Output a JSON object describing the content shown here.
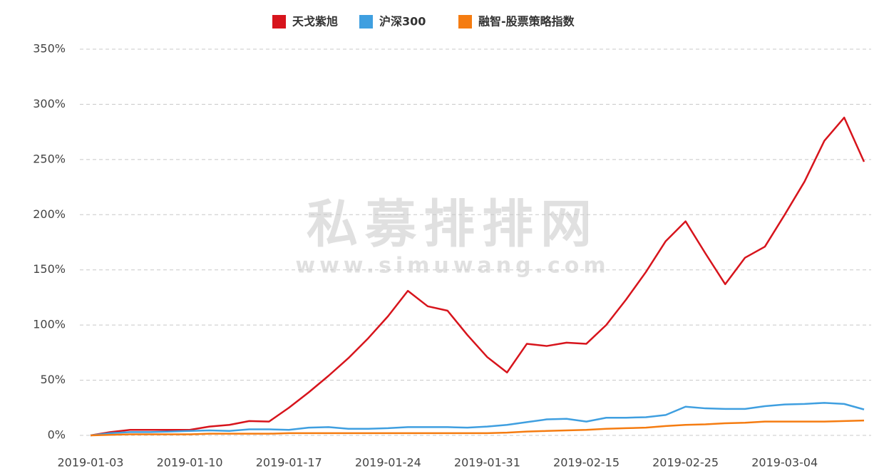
{
  "chart_data": {
    "type": "line",
    "watermark": [
      "私募排排网",
      "www.simuwang.com"
    ],
    "categories": [
      "2019-01-03",
      null,
      null,
      null,
      null,
      "2019-01-10",
      null,
      null,
      null,
      null,
      "2019-01-17",
      null,
      null,
      null,
      null,
      "2019-01-24",
      null,
      null,
      null,
      null,
      "2019-01-31",
      null,
      null,
      null,
      null,
      "2019-02-15",
      null,
      null,
      null,
      null,
      "2019-02-25",
      null,
      null,
      null,
      null,
      "2019-03-04",
      null,
      null,
      null,
      null
    ],
    "series": [
      {
        "name": "天戈紫旭",
        "color": "#d7141c",
        "values": [
          0,
          3,
          5,
          5,
          5,
          5,
          8,
          9.5,
          13,
          12.5,
          25,
          39,
          54,
          70,
          88,
          108,
          131,
          117,
          113,
          91,
          71,
          57,
          83,
          81,
          84,
          83,
          100,
          123,
          148,
          176,
          194,
          165,
          137,
          161,
          171,
          200,
          230,
          267,
          288,
          248
        ]
      },
      {
        "name": "沪深300",
        "color": "#3f9fe0",
        "values": [
          0,
          2,
          3,
          3,
          3.5,
          4,
          4.5,
          4,
          5.5,
          5.5,
          5,
          7,
          7.5,
          6,
          6,
          6.5,
          7.5,
          7.5,
          7.5,
          7,
          8,
          9.5,
          12,
          14.5,
          15,
          12.5,
          16,
          16,
          16.5,
          18.5,
          26,
          24.5,
          24,
          24,
          26.5,
          28,
          28.5,
          29.5,
          28.5,
          23.5
        ]
      },
      {
        "name": "融智-股票策略指数",
        "color": "#f57c11",
        "values": [
          0,
          0.5,
          1,
          1,
          1,
          1,
          1.5,
          1.5,
          1.5,
          1.5,
          2,
          2,
          2,
          2,
          2,
          2,
          2,
          2,
          2,
          2,
          2,
          2.5,
          3.5,
          4,
          4.5,
          5,
          6,
          6.5,
          7,
          8.5,
          9.5,
          10,
          11,
          11.5,
          12.5,
          12.5,
          12.5,
          12.5,
          13,
          13.5
        ]
      }
    ],
    "ylim": [
      0,
      350
    ],
    "yticks": [
      {
        "value": 0,
        "label": "0%"
      },
      {
        "value": 50,
        "label": "50%"
      },
      {
        "value": 100,
        "label": "100%"
      },
      {
        "value": 150,
        "label": "150%"
      },
      {
        "value": 200,
        "label": "200%"
      },
      {
        "value": 250,
        "label": "250%"
      },
      {
        "value": 300,
        "label": "300%"
      },
      {
        "value": 350,
        "label": "350%"
      }
    ],
    "grid": true,
    "legend": "top"
  }
}
